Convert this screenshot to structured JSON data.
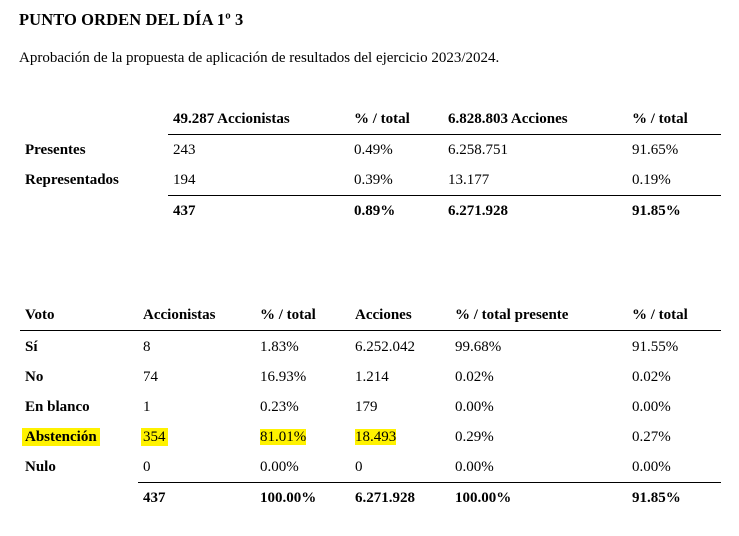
{
  "heading": {
    "title": "PUNTO ORDEN DEL DÍA 1º 3",
    "subtitle": "Aprobación de la propuesta de aplicación de resultados del ejercicio 2023/2024."
  },
  "attendance": {
    "headers": [
      "",
      "49.287 Accionistas",
      "% / total",
      "6.828.803 Acciones",
      "% / total"
    ],
    "rows": [
      [
        "Presentes",
        "243",
        "0.49%",
        "6.258.751",
        "91.65%"
      ],
      [
        "Representados",
        "194",
        "0.39%",
        "13.177",
        "0.19%"
      ]
    ],
    "total": [
      "",
      "437",
      "0.89%",
      "6.271.928",
      "91.85%"
    ]
  },
  "votes": {
    "headers": [
      "Voto",
      "Accionistas",
      "% / total",
      "Acciones",
      "% / total presente",
      "% / total"
    ],
    "rows": [
      [
        "Sí",
        "8",
        "1.83%",
        "6.252.042",
        "99.68%",
        "91.55%"
      ],
      [
        "No",
        "74",
        "16.93%",
        "1.214",
        "0.02%",
        "0.02%"
      ],
      [
        "En blanco",
        "1",
        "0.23%",
        "179",
        "0.00%",
        "0.00%"
      ],
      [
        "Abstención",
        "354",
        "81.01%",
        "18.493",
        "0.29%",
        "0.27%"
      ],
      [
        "Nulo",
        "0",
        "0.00%",
        "0",
        "0.00%",
        "0.00%"
      ]
    ],
    "total": [
      "",
      "437",
      "100.00%",
      "6.271.928",
      "100.00%",
      "91.85%"
    ]
  },
  "colors": {
    "highlight": "#fff200",
    "text": "#000000",
    "background": "#ffffff"
  }
}
